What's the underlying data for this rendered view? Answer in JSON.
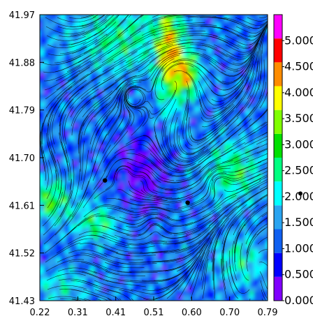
{
  "chart_data": {
    "type": "heatmap",
    "subtype": "filled contour with streamlines",
    "x_ticks": [
      "0.22",
      "0.31",
      "0.41",
      "0.51",
      "0.60",
      "0.70",
      "0.79"
    ],
    "y_ticks": [
      "41.97",
      "41.88",
      "41.79",
      "41.70",
      "41.61",
      "41.52",
      "41.43"
    ],
    "xlim": [
      0.22,
      0.79
    ],
    "ylim": [
      41.43,
      41.97
    ],
    "colorbar": {
      "range": [
        0.0,
        5.5
      ],
      "labels": [
        "0.000",
        "0.500",
        "1.000",
        "1.500",
        "2.000",
        "2.500",
        "3.000",
        "3.500",
        "4.000",
        "4.500",
        "5.000"
      ],
      "colors": [
        "#8000ff",
        "#0000ff",
        "#1060f0",
        "#2aa4f0",
        "#00ffff",
        "#00ff80",
        "#00e000",
        "#80ff00",
        "#ffff00",
        "#ff8c00",
        "#ff0000",
        "#ff00ff"
      ]
    },
    "points": [
      {
        "x": 0.383,
        "y": 41.657
      },
      {
        "x": 0.59,
        "y": 41.615
      }
    ],
    "side_marker": {
      "value": 2.06
    },
    "grid": false,
    "legend": "right"
  }
}
